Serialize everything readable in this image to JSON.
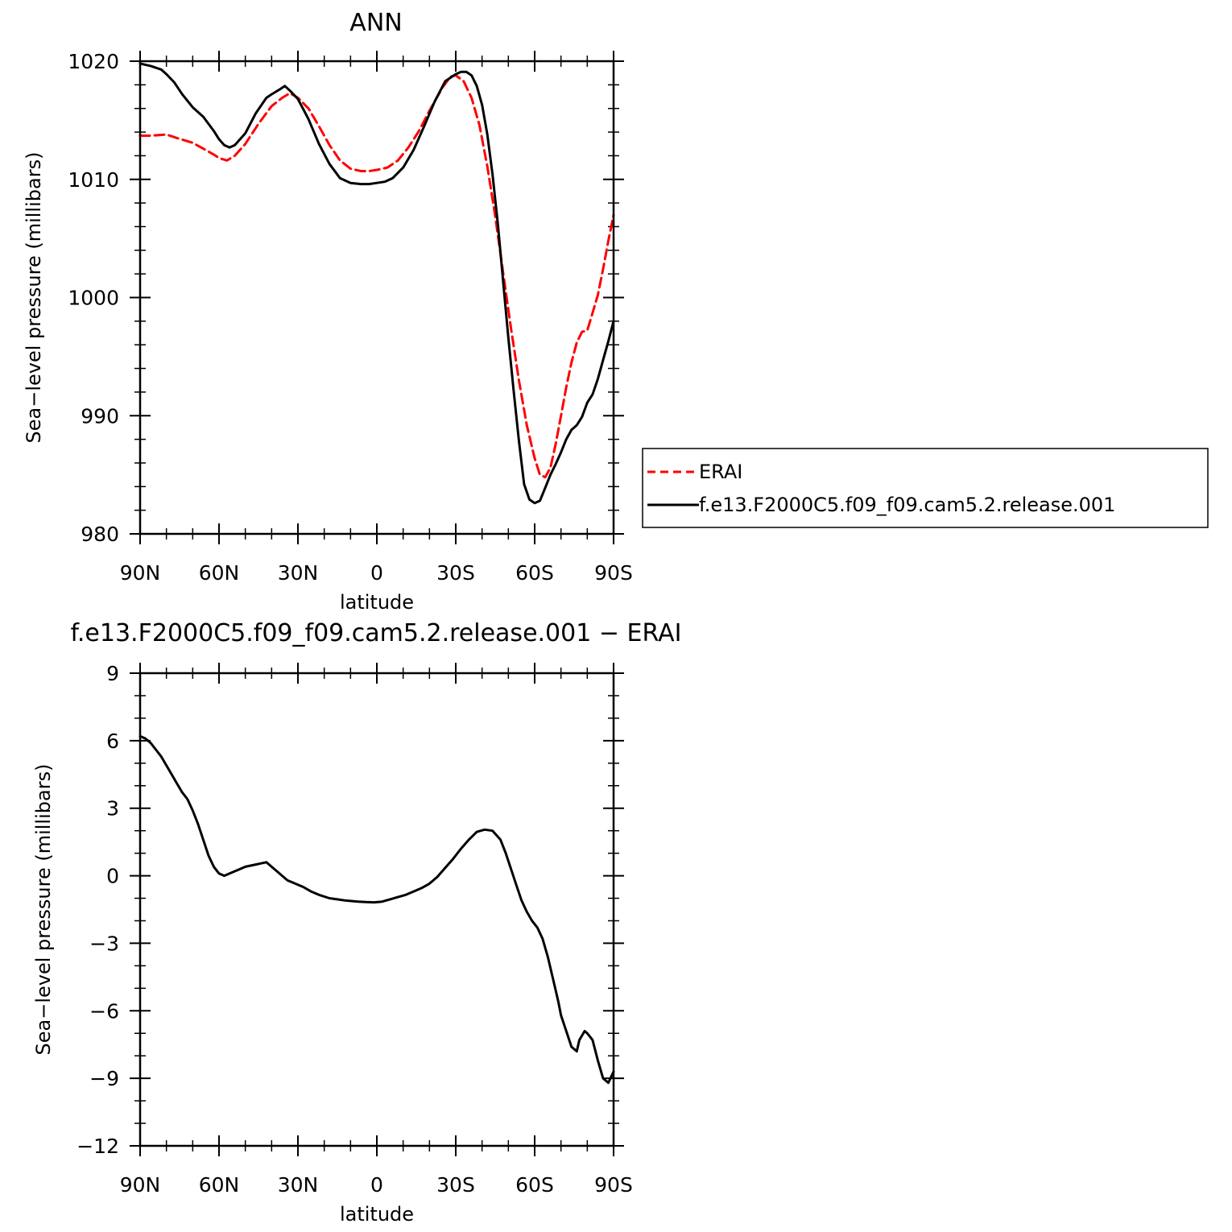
{
  "chart_data": [
    {
      "type": "line",
      "title": "ANN",
      "xlabel": "latitude",
      "ylabel": "Sea−level pressure (millibars)",
      "x_ticks": [
        "90N",
        "60N",
        "30N",
        "0",
        "30S",
        "60S",
        "90S"
      ],
      "y_ticks": [
        "980",
        "990",
        "1000",
        "1010",
        "1020"
      ],
      "xlim": [
        -90,
        90
      ],
      "ylim": [
        980,
        1020
      ],
      "x_direction": "north-to-south",
      "legend_position": "right",
      "grid": false,
      "series": [
        {
          "name": "ERAI",
          "color": "#ff0000",
          "style": "dashed",
          "x": [
            -90,
            -86,
            -80,
            -76,
            -70,
            -66,
            -62,
            -60,
            -57,
            -54,
            -50,
            -45,
            -40,
            -36,
            -33,
            -30,
            -26,
            -22,
            -18,
            -14,
            -10,
            -6,
            -3,
            0,
            4,
            8,
            12,
            16,
            20,
            25,
            28,
            30,
            33,
            36,
            39,
            42,
            45,
            48,
            51,
            54,
            57,
            60,
            62,
            64,
            66,
            68,
            70,
            72,
            74,
            76,
            78,
            80,
            82,
            84,
            86,
            88,
            90
          ],
          "values": [
            1013.7,
            1013.7,
            1013.8,
            1013.5,
            1013.1,
            1012.6,
            1012.1,
            1011.8,
            1011.6,
            1012.0,
            1013.0,
            1014.7,
            1016.2,
            1016.9,
            1017.3,
            1016.9,
            1016.0,
            1014.5,
            1012.9,
            1011.6,
            1010.9,
            1010.7,
            1010.7,
            1010.8,
            1011.0,
            1011.6,
            1012.7,
            1014.1,
            1015.8,
            1017.8,
            1018.7,
            1018.8,
            1018.3,
            1016.9,
            1014.6,
            1011.1,
            1006.9,
            1002.1,
            997.4,
            993.0,
            989.2,
            986.4,
            985.0,
            984.8,
            985.6,
            987.6,
            990.0,
            992.4,
            994.5,
            996.2,
            997.1,
            997.2,
            998.7,
            1000.2,
            1002.4,
            1004.8,
            1007.0
          ]
        },
        {
          "name": "f.e13.F2000C5.f09_f09.cam5.2.release.001",
          "color": "#000000",
          "style": "solid",
          "x": [
            -90,
            -86,
            -82,
            -80,
            -77,
            -74,
            -70,
            -66,
            -62,
            -60,
            -58,
            -56,
            -54,
            -50,
            -46,
            -42,
            -40,
            -37,
            -35,
            -33,
            -30,
            -26,
            -22,
            -18,
            -14,
            -10,
            -6,
            -3,
            0,
            3,
            6,
            10,
            14,
            18,
            22,
            26,
            30,
            32,
            34,
            36,
            38,
            40,
            42,
            44,
            46,
            48,
            50,
            52,
            54,
            56,
            58,
            60,
            62,
            64,
            66,
            68,
            70,
            72,
            74,
            76,
            78,
            80,
            82,
            84,
            86,
            88,
            90
          ],
          "values": [
            1019.8,
            1019.6,
            1019.3,
            1018.9,
            1018.2,
            1017.2,
            1016.1,
            1015.3,
            1014.1,
            1013.4,
            1012.9,
            1012.7,
            1012.9,
            1013.9,
            1015.6,
            1016.9,
            1017.2,
            1017.6,
            1017.9,
            1017.5,
            1016.8,
            1015.1,
            1013.0,
            1011.3,
            1010.1,
            1009.7,
            1009.6,
            1009.6,
            1009.7,
            1009.8,
            1010.1,
            1011.0,
            1012.5,
            1014.5,
            1016.6,
            1018.3,
            1018.9,
            1019.1,
            1019.1,
            1018.8,
            1017.9,
            1016.3,
            1013.8,
            1010.4,
            1006.2,
            1001.4,
            996.6,
            992.1,
            987.9,
            984.2,
            982.9,
            982.6,
            982.8,
            983.9,
            985.0,
            985.9,
            986.9,
            988.0,
            988.8,
            989.2,
            989.9,
            991.1,
            991.8,
            993.1,
            994.7,
            996.3,
            998.0
          ]
        }
      ]
    },
    {
      "type": "line",
      "title": "f.e13.F2000C5.f09_f09.cam5.2.release.001  −  ERAI",
      "xlabel": "latitude",
      "ylabel": "Sea−level pressure (millibars)",
      "x_ticks": [
        "90N",
        "60N",
        "30N",
        "0",
        "30S",
        "60S",
        "90S"
      ],
      "y_ticks": [
        "−12",
        "−9",
        "−6",
        "−3",
        "0",
        "3",
        "6",
        "9"
      ],
      "xlim": [
        -90,
        90
      ],
      "ylim": [
        -12,
        9
      ],
      "x_direction": "north-to-south",
      "grid": false,
      "series": [
        {
          "color": "#000000",
          "style": "solid",
          "x": [
            -90,
            -88,
            -86,
            -84,
            -82,
            -80,
            -78,
            -76,
            -74,
            -72,
            -70,
            -68,
            -66,
            -64,
            -62,
            -60,
            -58,
            -56,
            -54,
            -52,
            -50,
            -48,
            -46,
            -44,
            -42,
            -40,
            -38,
            -36,
            -34,
            -32,
            -30,
            -28,
            -25,
            -22,
            -18,
            -15,
            -12,
            -10,
            -7,
            -4,
            -1,
            2,
            5,
            8,
            11,
            14,
            17,
            20,
            23,
            26,
            29,
            32,
            35,
            38,
            41,
            44,
            47,
            49,
            51,
            53,
            55,
            57,
            59,
            61,
            63,
            65,
            67,
            69,
            70,
            72,
            74,
            76,
            77,
            79,
            80,
            82,
            84,
            86,
            88,
            90
          ],
          "values": [
            6.2,
            6.1,
            5.9,
            5.6,
            5.3,
            4.9,
            4.5,
            4.1,
            3.7,
            3.4,
            2.9,
            2.3,
            1.6,
            0.9,
            0.4,
            0.1,
            0.0,
            0.1,
            0.2,
            0.3,
            0.4,
            0.45,
            0.5,
            0.55,
            0.6,
            0.4,
            0.2,
            0.0,
            -0.2,
            -0.3,
            -0.4,
            -0.5,
            -0.7,
            -0.85,
            -1.0,
            -1.05,
            -1.1,
            -1.12,
            -1.15,
            -1.17,
            -1.18,
            -1.15,
            -1.05,
            -0.95,
            -0.85,
            -0.7,
            -0.55,
            -0.35,
            -0.05,
            0.35,
            0.75,
            1.2,
            1.6,
            1.95,
            2.05,
            2.0,
            1.6,
            1.0,
            0.3,
            -0.4,
            -1.1,
            -1.6,
            -2.0,
            -2.3,
            -2.8,
            -3.6,
            -4.6,
            -5.6,
            -6.2,
            -6.9,
            -7.6,
            -7.8,
            -7.3,
            -6.9,
            -7.0,
            -7.3,
            -8.2,
            -9.0,
            -9.2,
            -8.7
          ]
        }
      ]
    }
  ],
  "legend": {
    "items": [
      {
        "label": "ERAI",
        "color": "#ff0000",
        "style": "dashed"
      },
      {
        "label": "f.e13.F2000C5.f09_f09.cam5.2.release.001",
        "color": "#000000",
        "style": "solid"
      }
    ]
  }
}
